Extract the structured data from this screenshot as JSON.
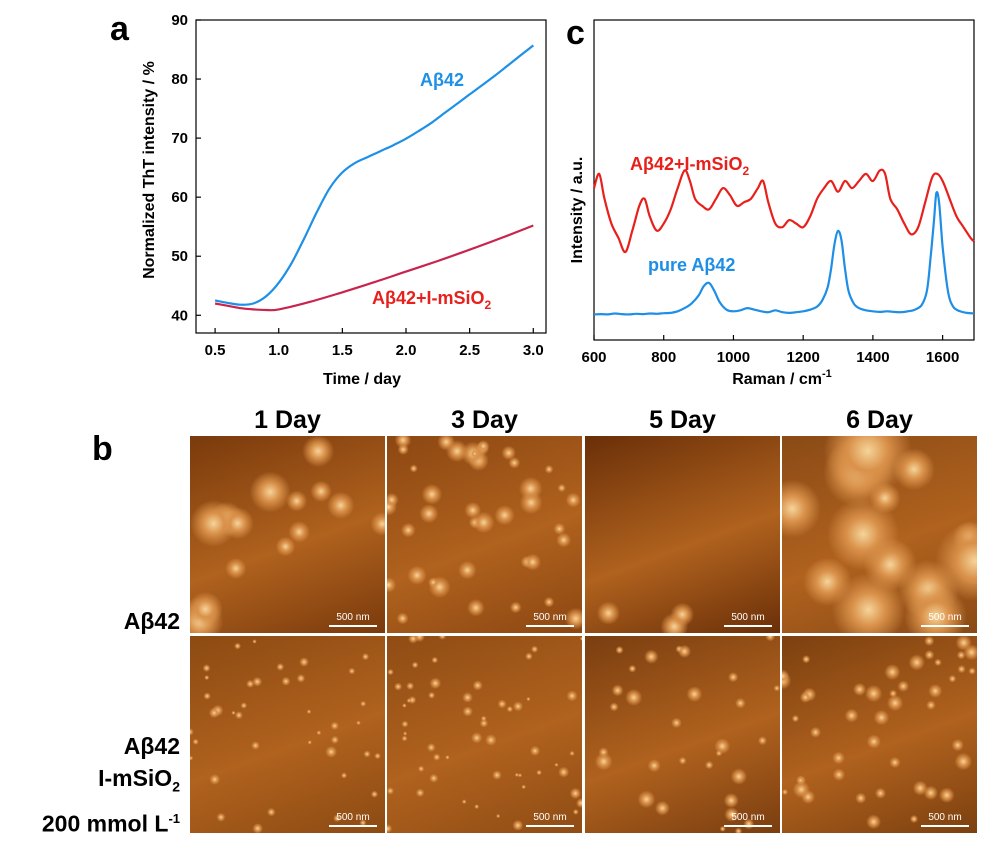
{
  "chart_data": [
    {
      "panel": "a",
      "type": "line",
      "xlabel": "Time / day",
      "ylabel": "Normalized ThT intensity / %",
      "xlim": [
        0.35,
        3.1
      ],
      "ylim": [
        37,
        90
      ],
      "xticks": [
        "0.5",
        "1.0",
        "1.5",
        "2.0",
        "2.5",
        "3.0"
      ],
      "yticks": [
        "40",
        "50",
        "60",
        "70",
        "80",
        "90"
      ],
      "series": [
        {
          "name": "Aβ42",
          "color": "#1e90e6",
          "x": [
            0.5,
            0.6,
            0.7,
            0.8,
            0.9,
            1.0,
            1.1,
            1.2,
            1.3,
            1.4,
            1.5,
            1.6,
            1.7,
            1.8,
            1.9,
            2.0,
            2.1,
            2.2,
            2.3,
            2.4,
            2.5,
            2.6,
            2.7,
            2.8,
            2.9,
            3.0
          ],
          "y": [
            42.5,
            42.1,
            41.8,
            42.0,
            43.2,
            45.5,
            48.8,
            53.0,
            57.5,
            61.5,
            64.2,
            65.8,
            66.8,
            67.8,
            68.8,
            69.9,
            71.2,
            72.6,
            74.2,
            75.8,
            77.4,
            79.0,
            80.6,
            82.3,
            84.0,
            85.7
          ]
        },
        {
          "name": "Aβ42+I-mSiO₂",
          "color": "#c8244e",
          "x": [
            0.5,
            0.6,
            0.7,
            0.8,
            0.9,
            1.0,
            1.25,
            1.5,
            1.75,
            2.0,
            2.25,
            2.5,
            2.75,
            3.0
          ],
          "y": [
            42.0,
            41.6,
            41.2,
            41.0,
            40.9,
            41.0,
            42.3,
            43.9,
            45.6,
            47.4,
            49.2,
            51.1,
            53.1,
            55.2
          ]
        }
      ],
      "annotations": [
        "Aβ42",
        "Aβ42+I-mSiO"
      ]
    },
    {
      "panel": "c",
      "type": "line",
      "xlabel": "Raman / cm",
      "xlabel_sup": "-1",
      "ylabel": "Intensity / a.u.",
      "xlim": [
        600,
        1690
      ],
      "xticks": [
        "600",
        "800",
        "1000",
        "1200",
        "1400",
        "1600"
      ],
      "series": [
        {
          "name": "Aβ42+I-mSiO₂",
          "color": "#e8201c",
          "x": [
            600,
            615,
            630,
            650,
            670,
            690,
            710,
            730,
            745,
            760,
            780,
            800,
            820,
            840,
            860,
            875,
            890,
            910,
            930,
            950,
            970,
            990,
            1010,
            1030,
            1050,
            1070,
            1085,
            1100,
            1120,
            1140,
            1160,
            1180,
            1200,
            1220,
            1240,
            1260,
            1280,
            1300,
            1320,
            1340,
            1360,
            1380,
            1400,
            1420,
            1435,
            1450,
            1470,
            1490,
            1510,
            1530,
            1550,
            1570,
            1585,
            1600,
            1620,
            1640,
            1660,
            1680,
            1690
          ],
          "y": [
            58,
            62,
            55,
            48,
            44,
            40,
            46,
            53,
            55,
            50,
            46,
            48,
            52,
            58,
            63,
            60,
            55,
            53,
            52,
            55,
            58,
            56,
            53,
            54,
            55,
            58,
            60,
            54,
            48,
            47,
            49,
            48,
            47,
            50,
            55,
            58,
            60,
            57,
            60,
            58,
            60,
            62,
            60,
            63,
            62,
            55,
            52,
            48,
            45,
            47,
            54,
            61,
            62,
            60,
            55,
            50,
            47,
            44,
            43
          ]
        },
        {
          "name": "pure Aβ42",
          "color": "#1e8ee6",
          "x": [
            600,
            620,
            640,
            660,
            680,
            700,
            720,
            740,
            760,
            780,
            800,
            820,
            840,
            860,
            880,
            900,
            915,
            930,
            945,
            960,
            980,
            1000,
            1020,
            1040,
            1060,
            1080,
            1100,
            1120,
            1140,
            1160,
            1180,
            1200,
            1220,
            1240,
            1255,
            1270,
            1280,
            1290,
            1300,
            1310,
            1320,
            1330,
            1345,
            1360,
            1380,
            1400,
            1420,
            1440,
            1460,
            1480,
            1500,
            1520,
            1540,
            1555,
            1565,
            1575,
            1582,
            1590,
            1600,
            1615,
            1630,
            1650,
            1670,
            1690
          ],
          "y": [
            0.5,
            0.6,
            0.5,
            0.8,
            0.6,
            0.5,
            0.7,
            0.6,
            0.8,
            0.7,
            0.9,
            1.0,
            1.5,
            2.5,
            4.0,
            6.5,
            9.5,
            10.5,
            8.0,
            4.5,
            2.0,
            1.5,
            1.8,
            2.5,
            2.0,
            1.5,
            1.2,
            1.8,
            1.2,
            1.0,
            1.2,
            1.5,
            2.0,
            3.0,
            5.0,
            9.0,
            15.0,
            23.0,
            27.0,
            24.0,
            15.0,
            8.0,
            4.0,
            2.5,
            1.8,
            1.5,
            1.3,
            1.5,
            1.3,
            1.2,
            1.5,
            2.0,
            3.5,
            8.0,
            18.0,
            30.0,
            39.0,
            36.0,
            22.0,
            8.0,
            3.0,
            1.5,
            1.0,
            0.8
          ]
        }
      ],
      "annotations": [
        "Aβ42+I-mSiO",
        "pure Aβ42"
      ]
    }
  ],
  "panel_letters": {
    "a": "a",
    "b": "b",
    "c": "c"
  },
  "afm": {
    "columns": [
      "1 Day",
      "3 Day",
      "5 Day",
      "6 Day"
    ],
    "row_labels": [
      "Aβ42",
      "Aβ42",
      "I-mSiO",
      "200 mmol L"
    ],
    "row_label_sup": "-1",
    "subscript_2": "2",
    "scalebar": "500 nm"
  }
}
